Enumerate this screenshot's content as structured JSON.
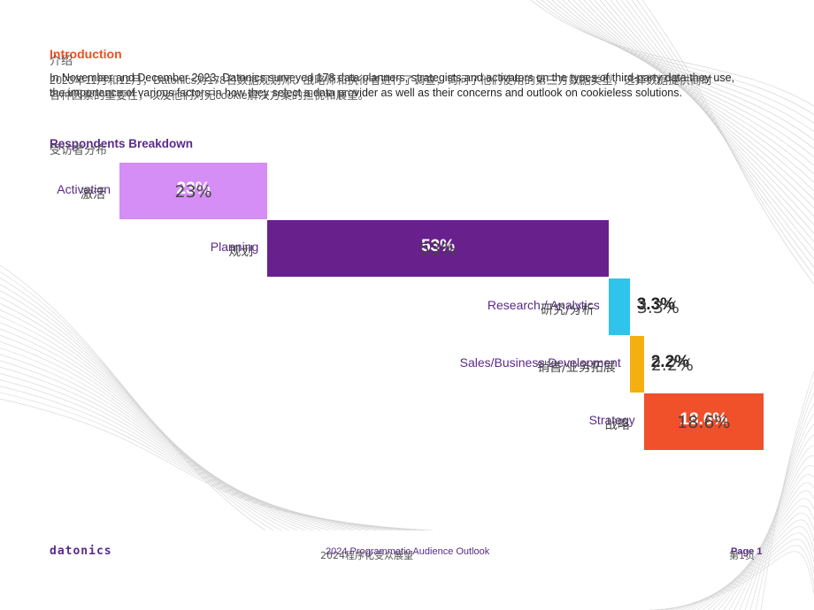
{
  "intro": {
    "title_en": "Introduction",
    "title_zh": "介绍",
    "body_en": "In November and December 2023, Datonics surveyed 178 data planners, strategists and activators on the types of third-party data they use, the importance of various factors in how they select a data provider as well as their concerns and outlook on cookieless solutions.",
    "body_zh": "2023年11月和12月，Datonics对178名数据规划师、战略师和执行者进行了调查，询问了他们使用的第三方数据类型，选择数据提供商时各种因素的重要性，以及他们对无cookie解决方案的担忧和展望。"
  },
  "breakdown": {
    "title_en": "Respondents Breakdown",
    "title_zh": "受访者分布"
  },
  "chart_data": {
    "type": "bar",
    "categories": [
      "Activation",
      "Planning",
      "Research / Analytics",
      "Sales/Business Development",
      "Strategy"
    ],
    "categories_zh": [
      "激活",
      "规划",
      "研究/分析",
      "销售/业务拓展",
      "战略"
    ],
    "values": [
      23,
      53,
      3.3,
      2.2,
      18.6
    ],
    "labels": [
      "23%",
      "53%",
      "3.3%",
      "2.2%",
      "18.6%"
    ],
    "colors": [
      "#d48ef5",
      "#68208c",
      "#2ec4ec",
      "#f4b010",
      "#f0502a"
    ]
  },
  "footer": {
    "logo": "datonics",
    "center_en": "2024 Programmatic Audience Outlook",
    "center_zh": "2024程序化受众展望",
    "page_en": "Page 1",
    "page_zh": "第1页"
  }
}
